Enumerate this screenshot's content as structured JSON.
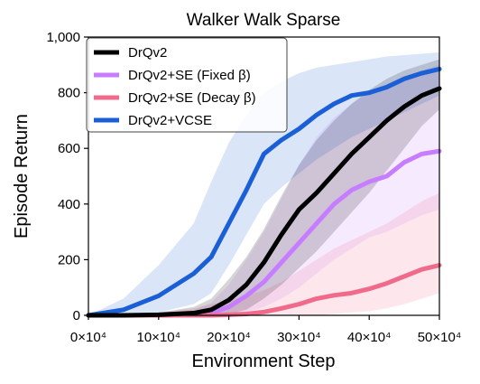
{
  "chart_data": {
    "type": "line",
    "title": "Walker Walk Sparse",
    "xlabel": "Environment Step",
    "ylabel": "Episode Return",
    "xlim": [
      0,
      500000
    ],
    "ylim": [
      0,
      1000
    ],
    "x_ticks": [
      0,
      100000,
      200000,
      300000,
      400000,
      500000
    ],
    "x_tick_labels": [
      "0×10⁴",
      "10×10⁴",
      "20×10⁴",
      "30×10⁴",
      "40×10⁴",
      "50×10⁴"
    ],
    "y_ticks": [
      0,
      200,
      400,
      600,
      800,
      1000
    ],
    "y_tick_labels": [
      "0",
      "200",
      "400",
      "600",
      "800",
      "1,000"
    ],
    "grid": false,
    "legend_position": "top-left",
    "x": [
      0,
      50000,
      100000,
      150000,
      175000,
      200000,
      225000,
      250000,
      275000,
      300000,
      325000,
      350000,
      375000,
      400000,
      425000,
      450000,
      475000,
      500000
    ],
    "series": [
      {
        "name": "DrQv2",
        "color": "#000000",
        "values": [
          0,
          0,
          2,
          8,
          20,
          55,
          110,
          190,
          290,
          380,
          440,
          510,
          580,
          640,
          700,
          750,
          790,
          815
        ],
        "band_lower": [
          0,
          0,
          0,
          0,
          0,
          5,
          20,
          60,
          110,
          170,
          230,
          300,
          370,
          440,
          520,
          600,
          680,
          740
        ],
        "band_upper": [
          0,
          5,
          10,
          30,
          60,
          130,
          210,
          310,
          430,
          540,
          630,
          700,
          760,
          810,
          850,
          880,
          900,
          920
        ]
      },
      {
        "name": "DrQv2+SE (Fixed β)",
        "color": "#c77dff",
        "values": [
          0,
          0,
          0,
          3,
          8,
          30,
          70,
          120,
          190,
          260,
          330,
          400,
          450,
          480,
          500,
          550,
          580,
          590
        ],
        "band_lower": [
          0,
          0,
          0,
          0,
          0,
          0,
          10,
          30,
          60,
          100,
          150,
          200,
          240,
          280,
          300,
          330,
          360,
          380
        ],
        "band_upper": [
          0,
          3,
          8,
          20,
          45,
          110,
          200,
          300,
          420,
          540,
          640,
          710,
          760,
          800,
          830,
          860,
          880,
          900
        ]
      },
      {
        "name": "DrQv2+SE (Decay β)",
        "color": "#f06b8b",
        "values": [
          0,
          0,
          0,
          0,
          0,
          2,
          5,
          12,
          25,
          40,
          60,
          72,
          80,
          95,
          115,
          140,
          165,
          180
        ],
        "band_lower": [
          0,
          0,
          0,
          0,
          0,
          0,
          0,
          0,
          0,
          0,
          0,
          5,
          10,
          15,
          25,
          40,
          60,
          80
        ],
        "band_upper": [
          0,
          5,
          10,
          25,
          40,
          55,
          70,
          90,
          120,
          160,
          200,
          240,
          270,
          300,
          330,
          370,
          410,
          440
        ]
      },
      {
        "name": "DrQv2+VCSE",
        "color": "#1a5fd6",
        "values": [
          0,
          20,
          70,
          150,
          210,
          330,
          450,
          580,
          630,
          670,
          720,
          760,
          790,
          800,
          820,
          850,
          870,
          885
        ],
        "band_lower": [
          0,
          0,
          10,
          40,
          80,
          180,
          290,
          400,
          460,
          510,
          560,
          600,
          640,
          670,
          700,
          730,
          760,
          790
        ],
        "band_upper": [
          0,
          60,
          180,
          330,
          480,
          620,
          720,
          800,
          840,
          870,
          890,
          900,
          910,
          920,
          930,
          935,
          940,
          945
        ]
      }
    ]
  }
}
